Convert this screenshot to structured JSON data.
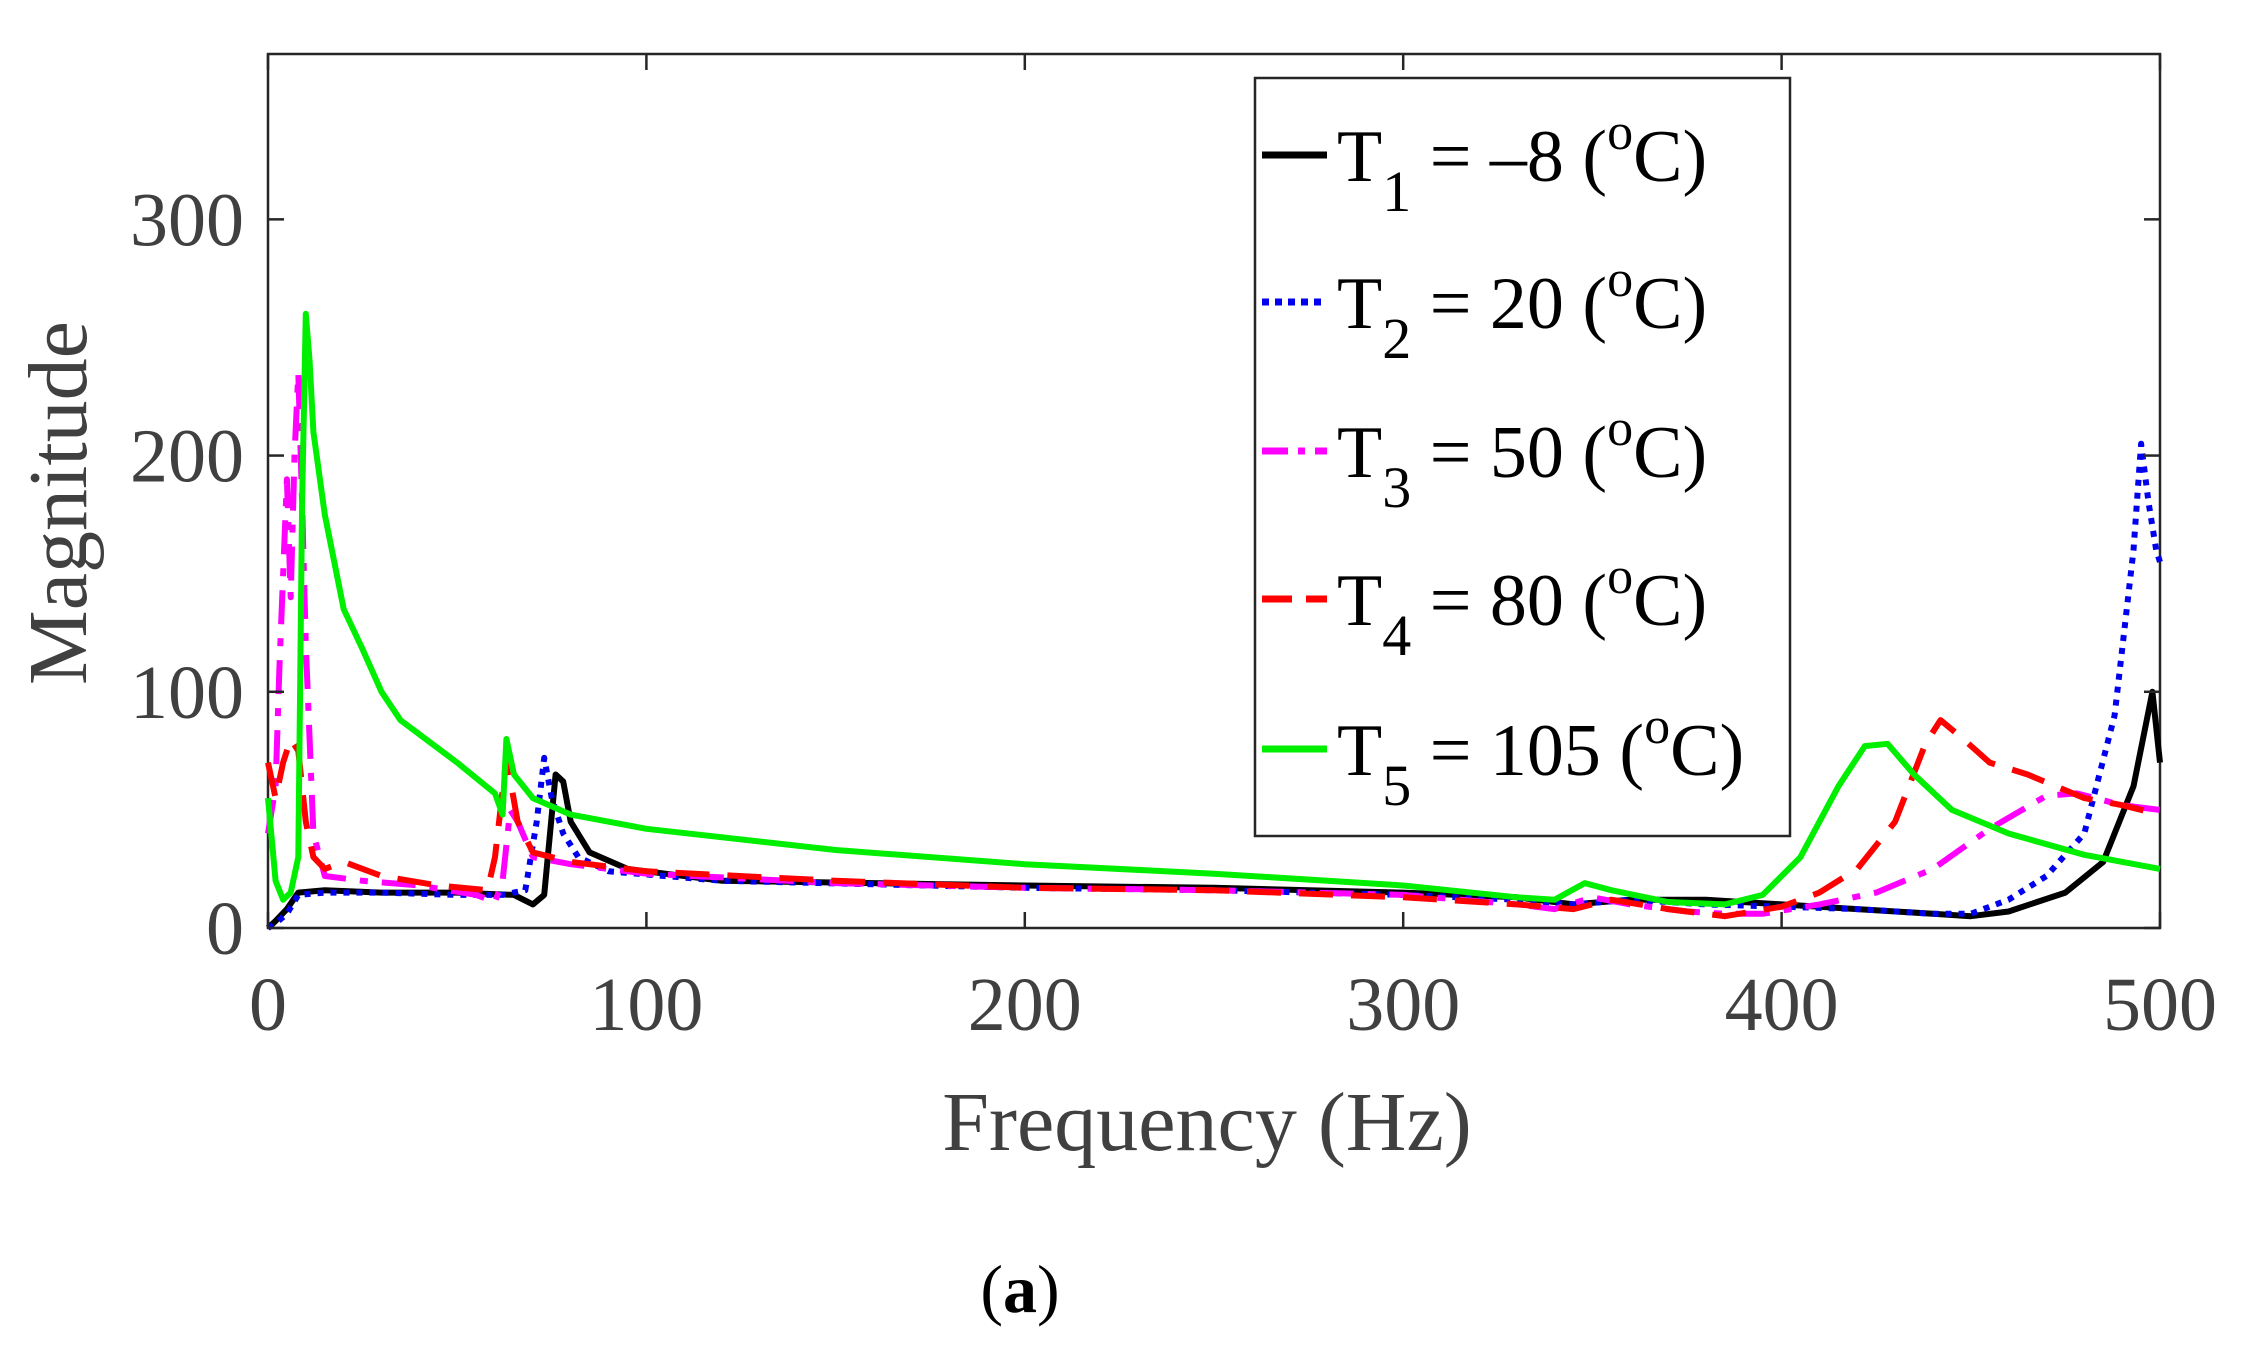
{
  "figure": {
    "caption_open": "(",
    "caption_letter": "a",
    "caption_close": ")"
  },
  "chart_data": {
    "type": "line",
    "title": "",
    "xlabel": "Frequency (Hz)",
    "ylabel": "Magnitude",
    "xlim": [
      0,
      500
    ],
    "ylim": [
      0,
      370
    ],
    "xticks": [
      0,
      100,
      200,
      300,
      400,
      500
    ],
    "yticks": [
      0,
      100,
      200,
      300
    ],
    "grid": false,
    "legend_position": "top-right",
    "series": [
      {
        "name": "T1 = –8 (oC)",
        "legend": {
          "sym": "T",
          "sub": "1",
          "eq": " = –8 (",
          "sup": "o",
          "unit": "C)"
        },
        "color": "#000000",
        "style": "solid",
        "points": [
          [
            0,
            0
          ],
          [
            2,
            3
          ],
          [
            5,
            8
          ],
          [
            8,
            15
          ],
          [
            15,
            16
          ],
          [
            30,
            15
          ],
          [
            50,
            15
          ],
          [
            65,
            14
          ],
          [
            70,
            10
          ],
          [
            73,
            14
          ],
          [
            76,
            65
          ],
          [
            78,
            62
          ],
          [
            80,
            45
          ],
          [
            85,
            32
          ],
          [
            95,
            25
          ],
          [
            120,
            20
          ],
          [
            200,
            18
          ],
          [
            250,
            17
          ],
          [
            300,
            15
          ],
          [
            330,
            13
          ],
          [
            345,
            10
          ],
          [
            360,
            12
          ],
          [
            380,
            12
          ],
          [
            400,
            10
          ],
          [
            420,
            8
          ],
          [
            440,
            6
          ],
          [
            450,
            5
          ],
          [
            460,
            7
          ],
          [
            475,
            15
          ],
          [
            485,
            28
          ],
          [
            493,
            60
          ],
          [
            498,
            100
          ],
          [
            500,
            70
          ]
        ]
      },
      {
        "name": "T2 = 20 (oC)",
        "legend": {
          "sym": "T",
          "sub": "2",
          "eq": " = 20 (",
          "sup": "o",
          "unit": "C)"
        },
        "color": "#0000ee",
        "style": "dotted",
        "points": [
          [
            0,
            0
          ],
          [
            2,
            2
          ],
          [
            5,
            6
          ],
          [
            8,
            14
          ],
          [
            15,
            15
          ],
          [
            30,
            15
          ],
          [
            50,
            14
          ],
          [
            62,
            14
          ],
          [
            68,
            16
          ],
          [
            71,
            45
          ],
          [
            73,
            72
          ],
          [
            75,
            55
          ],
          [
            78,
            40
          ],
          [
            82,
            30
          ],
          [
            90,
            24
          ],
          [
            120,
            20
          ],
          [
            200,
            17
          ],
          [
            250,
            16
          ],
          [
            300,
            14
          ],
          [
            330,
            12
          ],
          [
            345,
            10
          ],
          [
            360,
            12
          ],
          [
            380,
            10
          ],
          [
            400,
            9
          ],
          [
            420,
            8
          ],
          [
            440,
            6
          ],
          [
            450,
            6
          ],
          [
            460,
            12
          ],
          [
            470,
            22
          ],
          [
            480,
            40
          ],
          [
            488,
            90
          ],
          [
            493,
            160
          ],
          [
            495,
            205
          ],
          [
            497,
            180
          ],
          [
            499,
            160
          ],
          [
            500,
            155
          ]
        ]
      },
      {
        "name": "T3 = 50 (oC)",
        "legend": {
          "sym": "T",
          "sub": "3",
          "eq": " = 50 (",
          "sup": "o",
          "unit": "C)"
        },
        "color": "#ff00ff",
        "style": "dashdot",
        "points": [
          [
            0,
            40
          ],
          [
            2,
            60
          ],
          [
            3,
            110
          ],
          [
            5,
            190
          ],
          [
            6,
            140
          ],
          [
            7,
            200
          ],
          [
            8,
            235
          ],
          [
            9,
            180
          ],
          [
            10,
            120
          ],
          [
            12,
            40
          ],
          [
            15,
            22
          ],
          [
            25,
            20
          ],
          [
            40,
            18
          ],
          [
            55,
            14
          ],
          [
            60,
            11
          ],
          [
            62,
            20
          ],
          [
            64,
            50
          ],
          [
            66,
            45
          ],
          [
            70,
            30
          ],
          [
            80,
            27
          ],
          [
            100,
            23
          ],
          [
            150,
            19
          ],
          [
            200,
            17
          ],
          [
            250,
            16
          ],
          [
            300,
            14
          ],
          [
            330,
            10
          ],
          [
            340,
            8
          ],
          [
            350,
            13
          ],
          [
            360,
            10
          ],
          [
            375,
            7
          ],
          [
            385,
            6
          ],
          [
            395,
            6
          ],
          [
            410,
            10
          ],
          [
            425,
            15
          ],
          [
            440,
            25
          ],
          [
            455,
            42
          ],
          [
            470,
            56
          ],
          [
            478,
            57
          ],
          [
            490,
            52
          ],
          [
            500,
            50
          ]
        ]
      },
      {
        "name": "T4 = 80 (oC)",
        "legend": {
          "sym": "T",
          "sub": "4",
          "eq": " = 80 (",
          "sup": "o",
          "unit": "C)"
        },
        "color": "#ff0000",
        "style": "dashed",
        "points": [
          [
            0,
            70
          ],
          [
            2,
            55
          ],
          [
            4,
            70
          ],
          [
            6,
            80
          ],
          [
            8,
            75
          ],
          [
            10,
            45
          ],
          [
            12,
            30
          ],
          [
            15,
            25
          ],
          [
            20,
            28
          ],
          [
            30,
            22
          ],
          [
            45,
            18
          ],
          [
            58,
            16
          ],
          [
            60,
            30
          ],
          [
            63,
            72
          ],
          [
            66,
            45
          ],
          [
            70,
            32
          ],
          [
            80,
            28
          ],
          [
            100,
            24
          ],
          [
            150,
            20
          ],
          [
            200,
            17
          ],
          [
            250,
            16
          ],
          [
            300,
            13
          ],
          [
            330,
            10
          ],
          [
            345,
            8
          ],
          [
            355,
            12
          ],
          [
            370,
            8
          ],
          [
            385,
            5
          ],
          [
            400,
            9
          ],
          [
            410,
            15
          ],
          [
            420,
            25
          ],
          [
            430,
            45
          ],
          [
            438,
            78
          ],
          [
            442,
            88
          ],
          [
            448,
            80
          ],
          [
            455,
            70
          ],
          [
            465,
            65
          ],
          [
            480,
            55
          ],
          [
            490,
            52
          ],
          [
            500,
            48
          ]
        ]
      },
      {
        "name": "T5 = 105 (oC)",
        "legend": {
          "sym": "T",
          "sub": "5",
          "eq": " = 105 (",
          "sup": "o",
          "unit": "C)"
        },
        "color": "#00ee00",
        "style": "solid",
        "points": [
          [
            0,
            55
          ],
          [
            2,
            20
          ],
          [
            4,
            12
          ],
          [
            6,
            15
          ],
          [
            8,
            30
          ],
          [
            9,
            180
          ],
          [
            10,
            260
          ],
          [
            11,
            240
          ],
          [
            12,
            210
          ],
          [
            15,
            175
          ],
          [
            20,
            135
          ],
          [
            25,
            118
          ],
          [
            30,
            100
          ],
          [
            35,
            88
          ],
          [
            40,
            82
          ],
          [
            50,
            70
          ],
          [
            60,
            57
          ],
          [
            62,
            48
          ],
          [
            63,
            80
          ],
          [
            65,
            65
          ],
          [
            70,
            55
          ],
          [
            80,
            48
          ],
          [
            100,
            42
          ],
          [
            150,
            33
          ],
          [
            200,
            27
          ],
          [
            250,
            23
          ],
          [
            300,
            18
          ],
          [
            330,
            13
          ],
          [
            340,
            12
          ],
          [
            348,
            19
          ],
          [
            355,
            16
          ],
          [
            370,
            11
          ],
          [
            385,
            10
          ],
          [
            395,
            14
          ],
          [
            405,
            30
          ],
          [
            415,
            60
          ],
          [
            422,
            77
          ],
          [
            428,
            78
          ],
          [
            435,
            65
          ],
          [
            445,
            50
          ],
          [
            460,
            40
          ],
          [
            480,
            31
          ],
          [
            500,
            25
          ]
        ]
      }
    ]
  }
}
